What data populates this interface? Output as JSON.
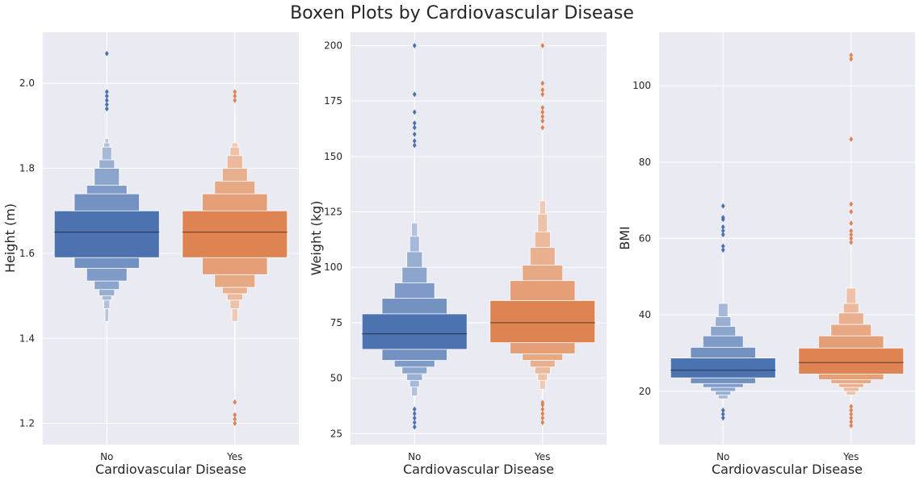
{
  "chart_data": {
    "type": "boxen",
    "title": "Boxen Plots by Cardiovascular Disease",
    "colors": {
      "No": "#4c72b0",
      "Yes": "#dd8452"
    },
    "panels": [
      {
        "xlabel": "Cardiovascular Disease",
        "ylabel": "Height (m)",
        "categories": [
          "No",
          "Yes"
        ],
        "ylim": [
          1.15,
          2.12
        ],
        "yticks": [
          1.2,
          1.4,
          1.6,
          1.8,
          2.0
        ],
        "ytick_labels": [
          "1.2",
          "1.4",
          "1.6",
          "1.8",
          "2.0"
        ],
        "groups": [
          {
            "name": "No",
            "median": 1.65,
            "levels": [
              [
                1.59,
                1.7
              ],
              [
                1.565,
                1.74
              ],
              [
                1.535,
                1.76
              ],
              [
                1.515,
                1.8
              ],
              [
                1.5,
                1.82
              ],
              [
                1.49,
                1.85
              ],
              [
                1.47,
                1.86
              ],
              [
                1.44,
                1.87
              ],
              [
                1.2,
                1.93
              ]
            ],
            "outliers": [
              1.94,
              1.95,
              1.96,
              1.97,
              1.98,
              2.07
            ]
          },
          {
            "name": "Yes",
            "median": 1.65,
            "levels": [
              [
                1.59,
                1.7
              ],
              [
                1.55,
                1.74
              ],
              [
                1.52,
                1.77
              ],
              [
                1.505,
                1.8
              ],
              [
                1.49,
                1.83
              ],
              [
                1.47,
                1.85
              ],
              [
                1.44,
                1.86
              ],
              [
                1.28,
                1.93
              ]
            ],
            "outliers": [
              1.2,
              1.21,
              1.22,
              1.25,
              1.96,
              1.97,
              1.98
            ]
          }
        ]
      },
      {
        "xlabel": "Cardiovascular Disease",
        "ylabel": "Weight (kg)",
        "categories": [
          "No",
          "Yes"
        ],
        "ylim": [
          20,
          206
        ],
        "yticks": [
          25,
          50,
          75,
          100,
          125,
          150,
          175,
          200
        ],
        "ytick_labels": [
          "25",
          "50",
          "75",
          "100",
          "125",
          "150",
          "175",
          "200"
        ],
        "groups": [
          {
            "name": "No",
            "median": 70,
            "levels": [
              [
                63,
                79
              ],
              [
                58,
                86
              ],
              [
                55,
                93
              ],
              [
                52,
                100
              ],
              [
                49,
                107
              ],
              [
                46,
                114
              ],
              [
                42,
                120
              ],
              [
                38,
                150
              ]
            ],
            "outliers": [
              28,
              30,
              32,
              34,
              36,
              155,
              157,
              160,
              163,
              165,
              170,
              178,
              200
            ]
          },
          {
            "name": "Yes",
            "median": 75,
            "levels": [
              [
                66,
                85
              ],
              [
                61,
                94
              ],
              [
                58,
                101
              ],
              [
                55,
                109
              ],
              [
                52,
                116
              ],
              [
                49,
                124
              ],
              [
                45,
                130
              ],
              [
                40,
                160
              ]
            ],
            "outliers": [
              30,
              32,
              34,
              36,
              38,
              39,
              163,
              166,
              168,
              170,
              172,
              178,
              180,
              183,
              200
            ]
          }
        ]
      },
      {
        "xlabel": "Cardiovascular Disease",
        "ylabel": "BMI",
        "categories": [
          "No",
          "Yes"
        ],
        "ylim": [
          6,
          114
        ],
        "yticks": [
          20,
          40,
          60,
          80,
          100
        ],
        "ytick_labels": [
          "20",
          "40",
          "60",
          "80",
          "100"
        ],
        "groups": [
          {
            "name": "No",
            "median": 25.5,
            "levels": [
              [
                23.5,
                28.7
              ],
              [
                22.0,
                31.5
              ],
              [
                21.0,
                34.5
              ],
              [
                20.0,
                37.0
              ],
              [
                19.0,
                39.5
              ],
              [
                18.0,
                43.0
              ],
              [
                16.5,
                56.0
              ]
            ],
            "outliers": [
              13.0,
              14.0,
              15.0,
              57.0,
              58.0,
              61.0,
              62.0,
              63.0,
              65.0,
              65.5,
              68.5
            ]
          },
          {
            "name": "Yes",
            "median": 27.5,
            "levels": [
              [
                24.5,
                31.3
              ],
              [
                23.0,
                34.5
              ],
              [
                22.0,
                37.5
              ],
              [
                21.0,
                40.5
              ],
              [
                20.0,
                43.0
              ],
              [
                19.0,
                47.0
              ],
              [
                17.5,
                57.0
              ]
            ],
            "outliers": [
              11.0,
              12.0,
              13.0,
              14.0,
              15.0,
              16.0,
              59.0,
              60.0,
              61.0,
              62.0,
              64.0,
              67.0,
              69.0,
              86.0,
              107.0,
              108.0
            ]
          }
        ]
      }
    ]
  }
}
